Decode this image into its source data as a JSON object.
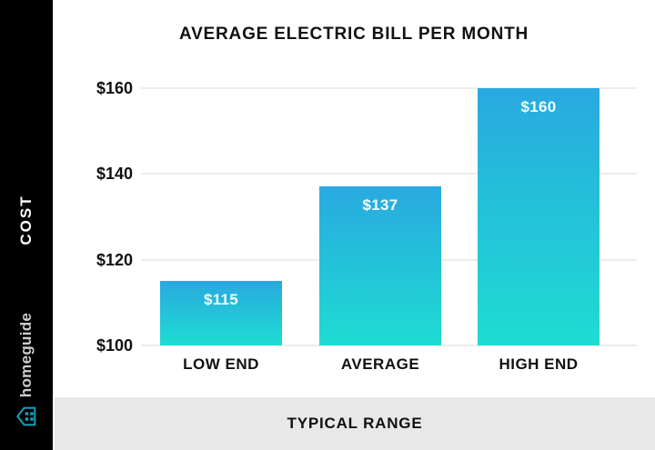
{
  "sidebar": {
    "cost_label": "COST",
    "brand": "homeguide",
    "bg_color": "#000000",
    "brand_text_color": "#c9cdd1",
    "brand_icon": "house-icon",
    "brand_icon_color": "#1998b6"
  },
  "chart_data": {
    "type": "bar",
    "title": "AVERAGE ELECTRIC BILL PER MONTH",
    "categories": [
      "LOW END",
      "AVERAGE",
      "HIGH END"
    ],
    "values": [
      115,
      137,
      160
    ],
    "value_labels": [
      "$115",
      "$137",
      "$160"
    ],
    "xlabel": "TYPICAL RANGE",
    "ylabel": "COST",
    "y_ticks": [
      {
        "value": 160,
        "label": "$160"
      },
      {
        "value": 140,
        "label": "$140"
      },
      {
        "value": 120,
        "label": "$120"
      },
      {
        "value": 100,
        "label": "$100"
      }
    ],
    "ylim": [
      100,
      160
    ],
    "grid": true,
    "legend": "none",
    "bar_gradient_top": "#29A9E0",
    "bar_gradient_bottom": "#1EDCD2",
    "value_label_color": "#f2feff",
    "gridline_color": "#ececec"
  },
  "footer": {
    "label": "TYPICAL RANGE",
    "bg_color": "#e8e8e8"
  }
}
